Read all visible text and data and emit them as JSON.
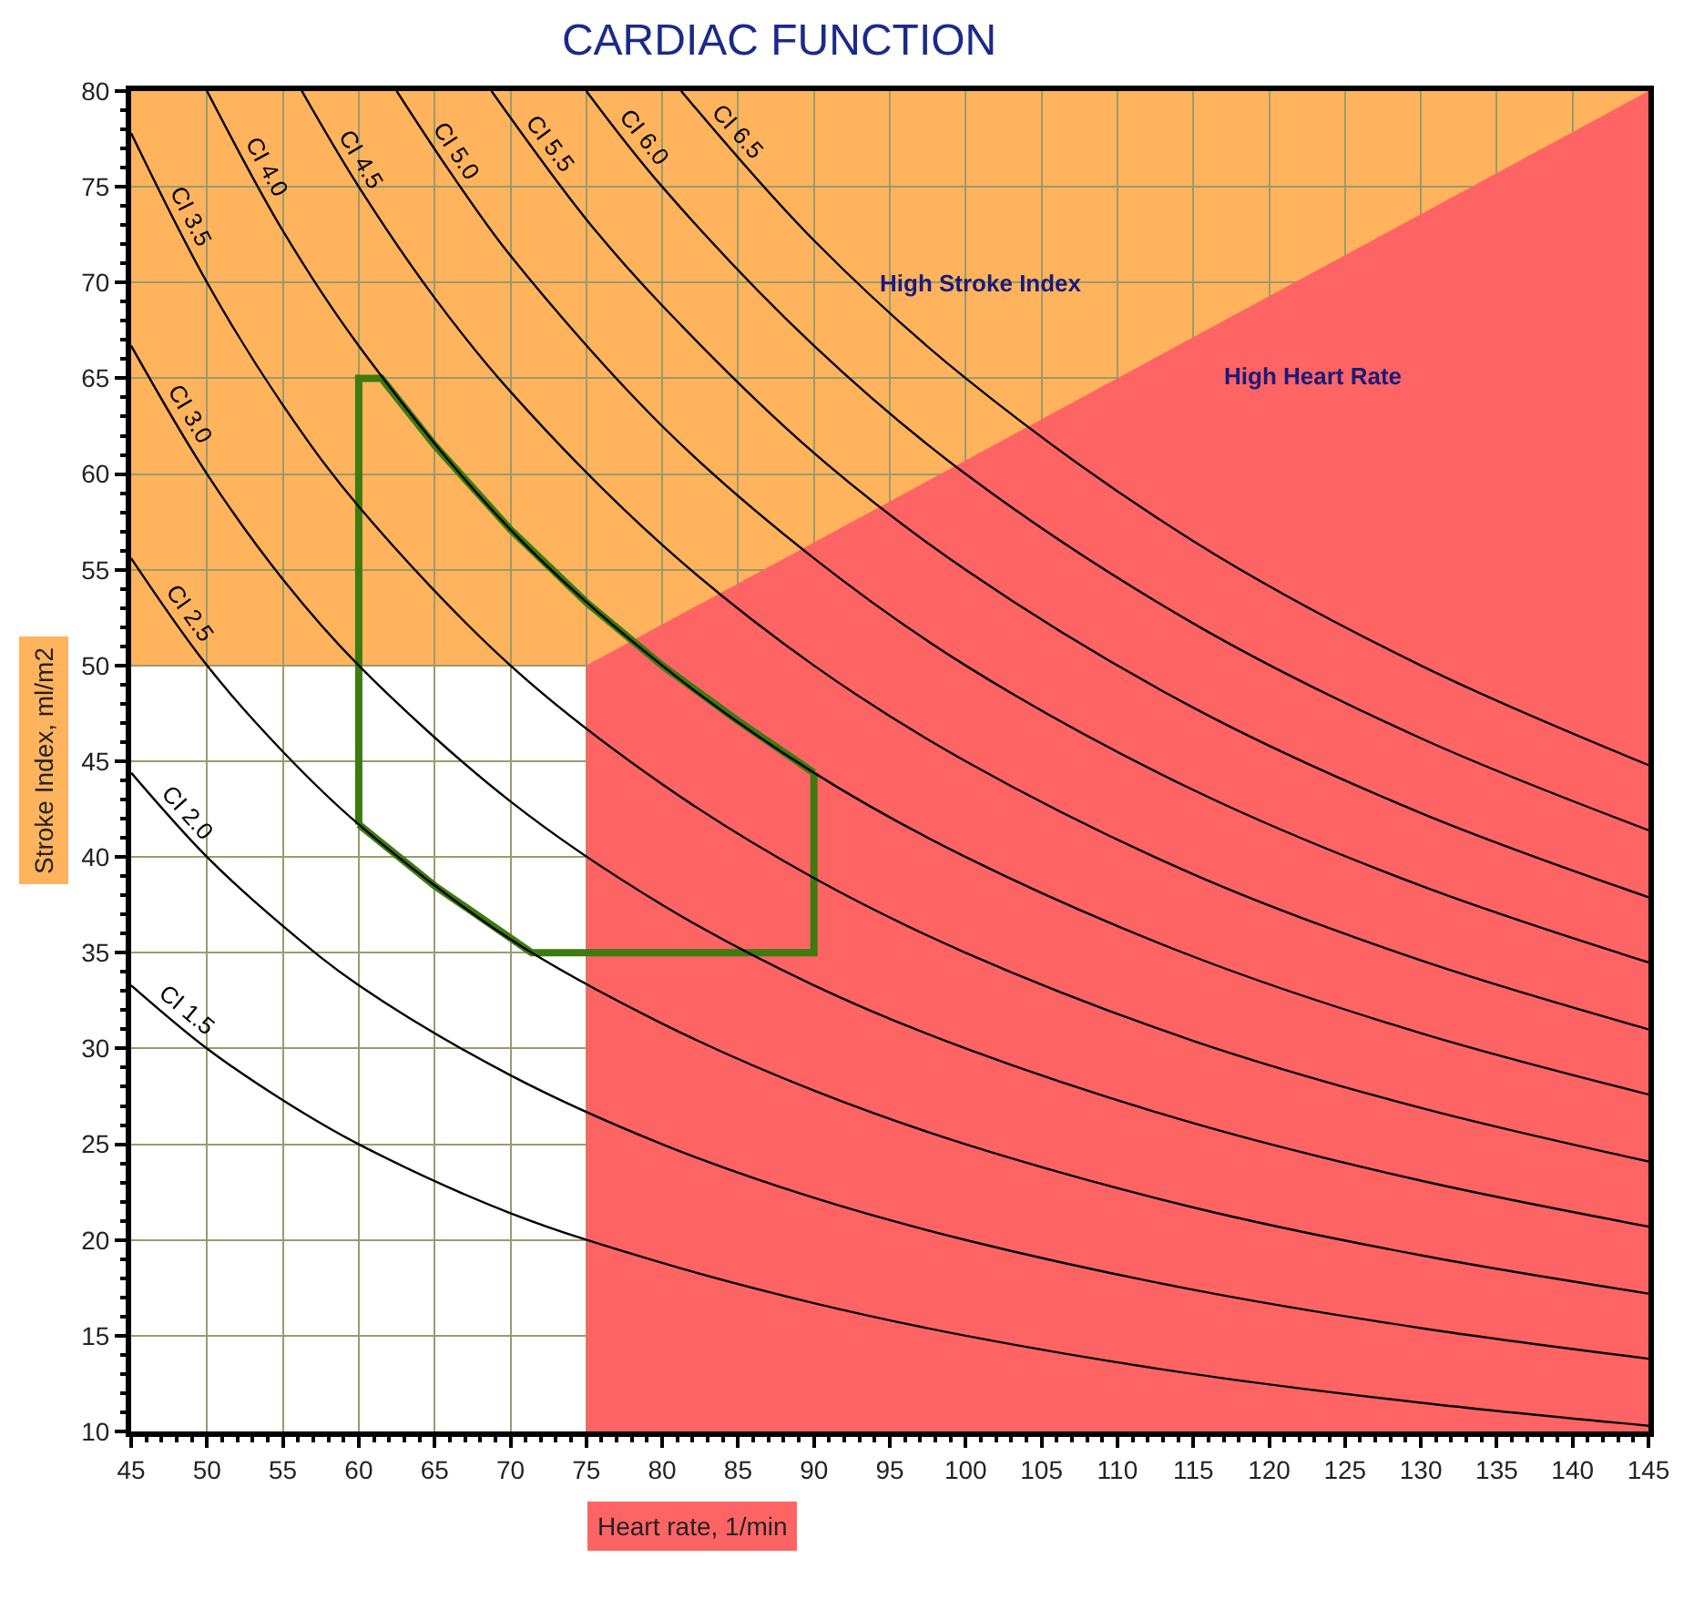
{
  "chart_data": {
    "type": "line",
    "title": "CARDIAC FUNCTION",
    "xlabel": "Heart rate, 1/min",
    "ylabel": "Stroke Index, ml/m2",
    "xlim": [
      45,
      145
    ],
    "ylim": [
      10,
      80
    ],
    "xticks": [
      45,
      50,
      55,
      60,
      65,
      70,
      75,
      80,
      85,
      90,
      95,
      100,
      105,
      110,
      115,
      120,
      125,
      130,
      135,
      140,
      145
    ],
    "yticks": [
      10,
      15,
      20,
      25,
      30,
      35,
      40,
      45,
      50,
      55,
      60,
      65,
      70,
      75,
      80
    ],
    "grid": true,
    "legend": false,
    "bands": [
      {
        "axis": "y",
        "from": 50,
        "to": 80,
        "color": "#ffb35c"
      }
    ],
    "series": [
      {
        "type": "area",
        "color": "#ff6464",
        "x": [
          75,
          145
        ],
        "values": [
          50,
          80
        ]
      },
      {
        "color": "#3d7a0f",
        "x": [
          60,
          60,
          61.5,
          65,
          70,
          75,
          80,
          85,
          90
        ],
        "values": [
          41.7,
          65,
          65,
          61.5,
          57.1,
          53.3,
          50,
          47.1,
          44.4
        ]
      },
      {
        "color": "#3d7a0f",
        "x": [
          60,
          65,
          71.4,
          90,
          90
        ],
        "values": [
          41.7,
          38.5,
          35,
          35,
          44.4
        ]
      },
      {
        "name": "CI 1.5",
        "color": "#000000",
        "x": [
          45,
          50,
          55,
          60,
          70,
          80,
          90,
          100,
          115,
          130,
          145
        ],
        "values": [
          33.3,
          30,
          27.3,
          25,
          21.4,
          18.8,
          16.7,
          15,
          13.0,
          11.5,
          10.3
        ]
      },
      {
        "name": "CI 2.0",
        "color": "#000000",
        "x": [
          45,
          50,
          55,
          60,
          70,
          80,
          90,
          100,
          115,
          130,
          145
        ],
        "values": [
          44.4,
          40,
          36.4,
          33.3,
          28.6,
          25,
          22.2,
          20,
          17.4,
          15.4,
          13.8
        ]
      },
      {
        "name": "CI 2.5",
        "color": "#000000",
        "x": [
          45,
          50,
          55,
          60,
          70,
          80,
          90,
          100,
          115,
          130,
          145
        ],
        "values": [
          55.6,
          50,
          45.5,
          41.7,
          35.7,
          31.3,
          27.8,
          25,
          21.7,
          19.2,
          17.2
        ]
      },
      {
        "name": "CI 3.0",
        "color": "#000000",
        "x": [
          45,
          50,
          55,
          60,
          70,
          80,
          90,
          100,
          115,
          130,
          145
        ],
        "values": [
          66.7,
          60,
          54.5,
          50,
          42.9,
          37.5,
          33.3,
          30,
          26.1,
          23.1,
          20.7
        ]
      },
      {
        "name": "CI 3.5",
        "color": "#000000",
        "x": [
          45,
          50,
          55,
          60,
          70,
          80,
          90,
          100,
          115,
          130,
          145
        ],
        "values": [
          77.8,
          70,
          63.6,
          58.3,
          50,
          43.8,
          38.9,
          35,
          30.4,
          26.9,
          24.1
        ]
      },
      {
        "name": "CI 4.0",
        "color": "#000000",
        "x": [
          50,
          55,
          60,
          70,
          80,
          90,
          100,
          115,
          130,
          145
        ],
        "values": [
          80,
          72.7,
          66.7,
          57.1,
          50,
          44.4,
          40,
          34.8,
          30.8,
          27.6
        ]
      },
      {
        "name": "CI 4.5",
        "color": "#000000",
        "x": [
          56.25,
          60,
          65,
          70,
          80,
          90,
          100,
          115,
          130,
          145
        ],
        "values": [
          80,
          75,
          69.2,
          64.3,
          56.3,
          50,
          45,
          39.1,
          34.6,
          31.0
        ]
      },
      {
        "name": "CI 5.0",
        "color": "#000000",
        "x": [
          62.5,
          66,
          70,
          80,
          90,
          100,
          115,
          130,
          145
        ],
        "values": [
          80,
          75.8,
          71.4,
          62.5,
          55.6,
          50,
          43.5,
          38.5,
          34.5
        ]
      },
      {
        "name": "CI 5.5",
        "color": "#000000",
        "x": [
          68.75,
          75,
          80,
          90,
          100,
          115,
          130,
          145
        ],
        "values": [
          80,
          73.3,
          68.8,
          61.1,
          55,
          47.8,
          42.3,
          37.9
        ]
      },
      {
        "name": "CI 6.0",
        "color": "#000000",
        "x": [
          75,
          80,
          90,
          100,
          115,
          130,
          145
        ],
        "values": [
          80,
          75,
          66.7,
          60,
          52.2,
          46.2,
          41.4
        ]
      },
      {
        "name": "CI 6.5",
        "color": "#000000",
        "x": [
          81.25,
          90,
          100,
          115,
          130,
          145
        ],
        "values": [
          80,
          72.2,
          65,
          56.5,
          50,
          44.8
        ]
      }
    ],
    "annotations": [
      "High Stroke Index",
      "High Heart Rate"
    ]
  }
}
